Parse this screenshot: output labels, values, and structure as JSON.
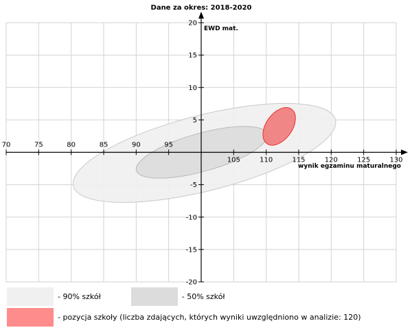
{
  "chart_data": {
    "type": "scatter",
    "title": "Dane za okres: 2018-2020",
    "xlabel": "wynik egzaminu maturalnego",
    "ylabel": "EWD mat.",
    "xlim": [
      70,
      130
    ],
    "ylim": [
      -20,
      20
    ],
    "x_ticks": [
      70,
      75,
      80,
      85,
      90,
      95,
      105,
      110,
      115,
      120,
      125,
      130
    ],
    "y_ticks": [
      20,
      15,
      10,
      5,
      -5,
      -10,
      -15,
      -20
    ],
    "grid": true,
    "ellipses": [
      {
        "name": "90% szkół",
        "center": [
          100.5,
          -0.1
        ],
        "x_extent": [
          80.3,
          120.7
        ],
        "y_extent": [
          -7.7,
          7.6
        ],
        "color": "#f0f0f0",
        "stroke": "#c8c8c8"
      },
      {
        "name": "50% szkół",
        "center": [
          100.1,
          0.0
        ],
        "x_extent": [
          90.0,
          110.2
        ],
        "y_extent": [
          -3.9,
          4.1
        ],
        "color": "#dcdcdc",
        "stroke": "#b8b8b8"
      },
      {
        "name": "pozycja szkoły",
        "center": [
          112.0,
          4.0
        ],
        "x_extent": [
          109.5,
          114.5
        ],
        "y_extent": [
          1.1,
          6.9
        ],
        "color": "#f08080",
        "stroke": "#e83030"
      }
    ]
  },
  "legend": [
    {
      "label": "- 90% szkół",
      "color": "#f0f0f0"
    },
    {
      "label": "- 50% szkół",
      "color": "#dcdcdc"
    },
    {
      "label": "- pozycja szkoły (liczba zdających, których wyniki uwzględniono w analizie: 120)",
      "color": "#ff8c8c"
    }
  ]
}
